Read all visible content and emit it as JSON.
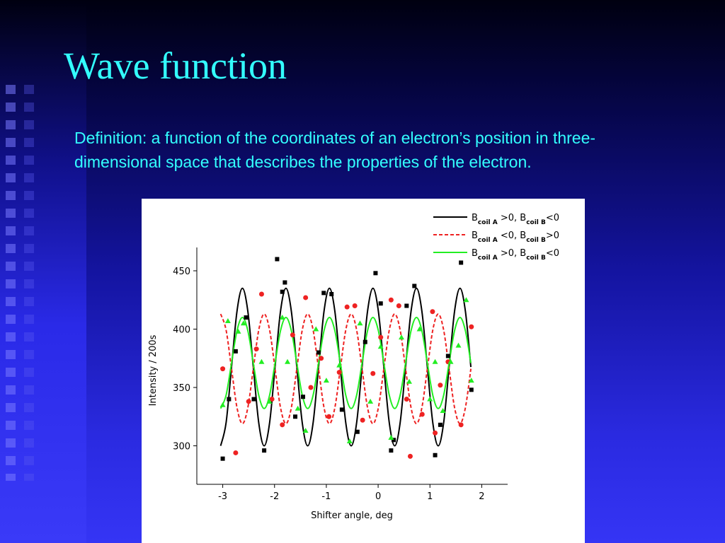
{
  "title": "Wave function",
  "body": "Definition: a function of the coordinates of an electron’s position in three-dimensional space that describes the properties of the electron.",
  "chart_data": {
    "type": "line",
    "x_label": "Shifter angle, deg",
    "y_label": "Intensity / 200s",
    "xlim": [
      -3.5,
      2.5
    ],
    "ylim": [
      267,
      470
    ],
    "xticks": [
      -3,
      -2,
      -1,
      0,
      1,
      2
    ],
    "yticks": [
      300,
      350,
      400,
      450
    ],
    "legend": "upper right",
    "x": [
      -3.04,
      -2.935,
      -2.83,
      -2.725,
      -2.62,
      -2.515,
      -2.41,
      -2.305,
      -2.2,
      -2.095,
      -1.99,
      -1.885,
      -1.78,
      -1.675,
      -1.57,
      -1.465,
      -1.36,
      -1.255,
      -1.15,
      -1.045,
      -0.94,
      -0.835,
      -0.73,
      -0.625,
      -0.52,
      -0.415,
      -0.31,
      -0.205,
      -0.1,
      0.005,
      0.11,
      0.215,
      0.32,
      0.425,
      0.53,
      0.635,
      0.74,
      0.845,
      0.95,
      1.055,
      1.16,
      1.265,
      1.37,
      1.475,
      1.58,
      1.685,
      1.79
    ],
    "series": [
      {
        "type": "line",
        "name_parts": [
          "B",
          "coil A",
          " >0, B",
          "coil B",
          "<0"
        ],
        "color": "#000000",
        "dash": false,
        "values": [
          300,
          319.8,
          367.5,
          415.2,
          435,
          415.2,
          367.5,
          319.8,
          300,
          319.8,
          367.5,
          415.2,
          435,
          415.2,
          367.5,
          319.8,
          300,
          319.8,
          367.5,
          415.2,
          435,
          415.2,
          367.5,
          319.8,
          300,
          319.8,
          367.5,
          415.2,
          435,
          415.2,
          367.5,
          319.8,
          300,
          319.8,
          367.5,
          415.2,
          435,
          415.2,
          367.5,
          319.8,
          300,
          319.8,
          367.5,
          415.2,
          435,
          415.2,
          367.5
        ]
      },
      {
        "type": "line",
        "name_parts": [
          "B",
          "coil A",
          " <0, B",
          "coil B",
          ">0"
        ],
        "color": "#ee2222",
        "dash": true,
        "values": [
          413,
          399.2,
          366,
          332.8,
          319,
          332.8,
          366,
          399.2,
          413,
          399.2,
          366,
          332.8,
          319,
          332.8,
          366,
          399.2,
          413,
          399.2,
          366,
          332.8,
          319,
          332.8,
          366,
          399.2,
          413,
          399.2,
          366,
          332.8,
          319,
          332.8,
          366,
          399.2,
          413,
          399.2,
          366,
          332.8,
          319,
          332.8,
          366,
          399.2,
          413,
          399.2,
          366,
          332.8,
          319,
          332.8,
          366
        ]
      },
      {
        "type": "line",
        "name_parts": [
          "B",
          "coil A",
          " >0, B",
          "coil B",
          "<0"
        ],
        "color": "#22ee22",
        "dash": false,
        "values": [
          332,
          343.4,
          371,
          398.6,
          410,
          398.6,
          371,
          343.4,
          332,
          343.4,
          371,
          398.6,
          410,
          398.6,
          371,
          343.4,
          332,
          343.4,
          371,
          398.6,
          410,
          398.6,
          371,
          343.4,
          332,
          343.4,
          371,
          398.6,
          410,
          398.6,
          371,
          343.4,
          332,
          343.4,
          371,
          398.6,
          410,
          398.6,
          371,
          343.4,
          332,
          343.4,
          371,
          398.6,
          410,
          398.6,
          371
        ]
      },
      {
        "type": "scatter",
        "marker": "square",
        "color": "#000000",
        "x": [
          -3,
          -2.88,
          -2.75,
          -2.55,
          -2.4,
          -2.2,
          -1.95,
          -1.85,
          -1.8,
          -1.6,
          -1.45,
          -1.15,
          -1.05,
          -0.9,
          -0.7,
          -0.4,
          -0.25,
          -0.05,
          0.05,
          0.25,
          0.3,
          0.55,
          0.7,
          1.1,
          1.2,
          1.35,
          1.6,
          1.8
        ],
        "values": [
          289,
          340,
          381,
          410,
          340,
          296,
          460,
          432,
          440,
          325,
          342,
          380,
          431,
          430,
          331,
          312,
          389,
          448,
          422,
          296,
          305,
          420,
          437,
          292,
          318,
          377,
          457,
          348
        ]
      },
      {
        "type": "scatter",
        "marker": "circle",
        "color": "#ee2222",
        "x": [
          -3,
          -2.75,
          -2.5,
          -2.35,
          -2.25,
          -2.05,
          -1.85,
          -1.65,
          -1.4,
          -1.3,
          -1.1,
          -0.95,
          -0.75,
          -0.6,
          -0.45,
          -0.3,
          -0.1,
          0.05,
          0.25,
          0.4,
          0.55,
          0.62,
          0.85,
          1.05,
          1.1,
          1.2,
          1.35,
          1.6,
          1.8
        ],
        "values": [
          366,
          294,
          338,
          383,
          430,
          340,
          318,
          395,
          427,
          350,
          375,
          325,
          363,
          419,
          420,
          322,
          362,
          393,
          425,
          420,
          340,
          291,
          327,
          415,
          311,
          352,
          372,
          318,
          402
        ]
      },
      {
        "type": "scatter",
        "marker": "triangle",
        "color": "#22ee22",
        "x": [
          -3,
          -2.9,
          -2.7,
          -2.6,
          -2.25,
          -2.1,
          -1.85,
          -1.75,
          -1.55,
          -1.4,
          -1.2,
          -1,
          -0.75,
          -0.55,
          -0.35,
          -0.15,
          0.05,
          0.25,
          0.45,
          0.6,
          0.8,
          1,
          1.1,
          1.25,
          1.4,
          1.55,
          1.7,
          1.8
        ],
        "values": [
          335,
          407,
          398,
          405,
          372,
          338,
          410,
          372,
          332,
          313,
          400,
          356,
          369,
          304,
          405,
          338,
          385,
          307,
          393,
          355,
          400,
          340,
          372,
          330,
          372,
          386,
          425,
          356
        ]
      }
    ]
  }
}
